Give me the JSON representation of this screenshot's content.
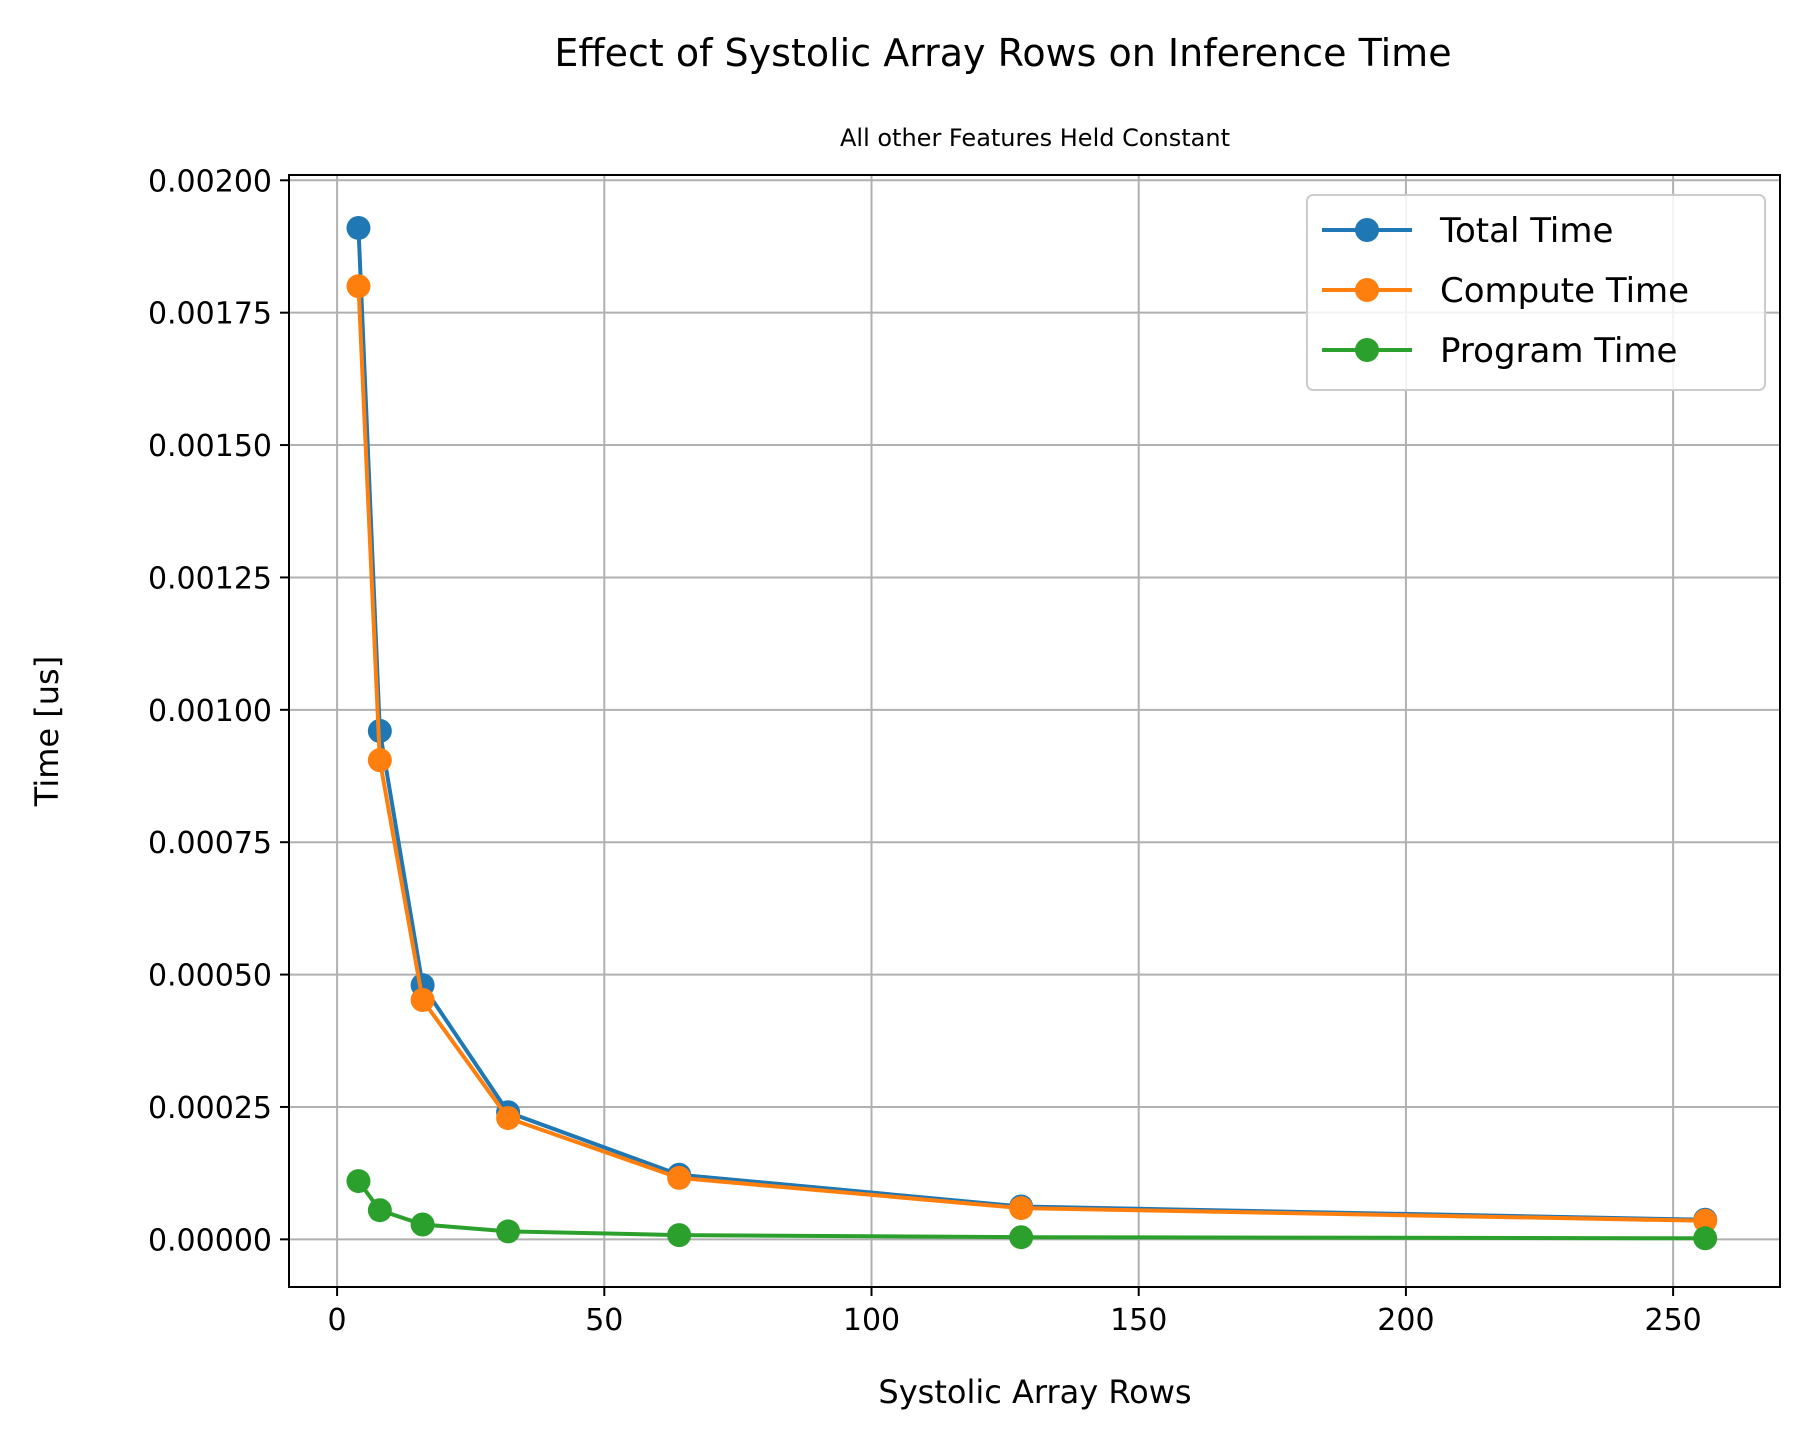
{
  "chart_data": {
    "type": "line",
    "title": "Effect of Systolic Array Rows on Inference Time",
    "subtitle": "All other Features Held Constant",
    "xlabel": "Systolic Array Rows",
    "ylabel": "Time [us]",
    "xlim": [
      -9,
      270
    ],
    "ylim": [
      -9e-05,
      0.00201
    ],
    "xticks": [
      0,
      50,
      100,
      150,
      200,
      250
    ],
    "xtick_labels": [
      "0",
      "50",
      "100",
      "150",
      "200",
      "250"
    ],
    "yticks": [
      0,
      0.00025,
      0.0005,
      0.00075,
      0.001,
      0.00125,
      0.0015,
      0.00175,
      0.002
    ],
    "ytick_labels": [
      "0.00000",
      "0.00025",
      "0.00050",
      "0.00075",
      "0.00100",
      "0.00125",
      "0.00150",
      "0.00175",
      "0.00200"
    ],
    "grid": true,
    "legend_position": "top-right",
    "x": [
      4,
      8,
      16,
      32,
      64,
      128,
      256
    ],
    "series": [
      {
        "name": "Total Time",
        "color": "#1f77b4",
        "values": [
          0.00191,
          0.00096,
          0.00048,
          0.00024,
          0.000122,
          6.2e-05,
          3.7e-05
        ]
      },
      {
        "name": "Compute Time",
        "color": "#ff7f0e",
        "values": [
          0.0018,
          0.000905,
          0.000452,
          0.000229,
          0.000116,
          5.9e-05,
          3.5e-05
        ]
      },
      {
        "name": "Program Time",
        "color": "#2ca02c",
        "values": [
          0.00011,
          5.5e-05,
          2.8e-05,
          1.5e-05,
          8e-06,
          4e-06,
          2e-06
        ]
      }
    ]
  }
}
